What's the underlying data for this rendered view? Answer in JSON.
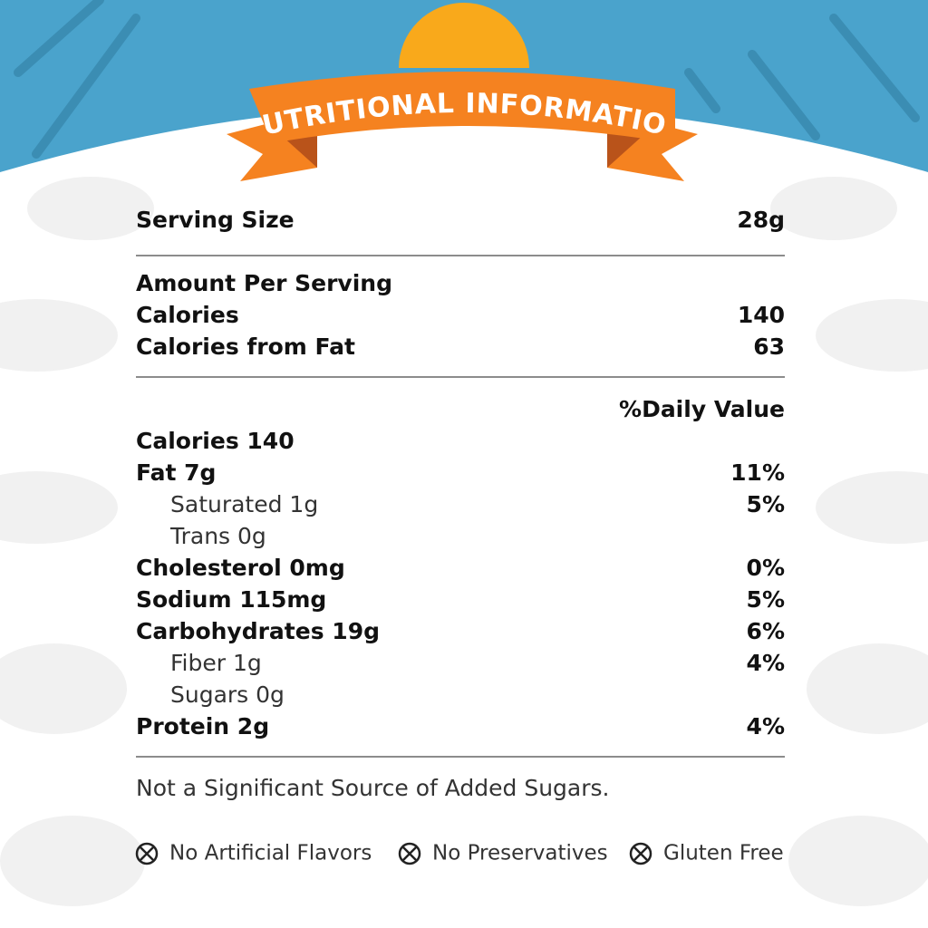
{
  "header": {
    "title": "NUTRITIONAL INFORMATION"
  },
  "serving": {
    "label": "Serving Size",
    "value": "28g"
  },
  "amount": {
    "heading": "Amount Per Serving",
    "rows": [
      {
        "label": "Calories",
        "value": "140"
      },
      {
        "label": "Calories from Fat",
        "value": "63"
      }
    ]
  },
  "daily_value_heading": "%Daily Value",
  "nutrients": [
    {
      "label": "Calories 140"
    },
    {
      "label": "Fat 7g",
      "dv": "11%",
      "sub": [
        {
          "label": "Saturated 1g",
          "dv": "5%"
        },
        {
          "label": "Trans 0g"
        }
      ]
    },
    {
      "label": "Cholesterol 0mg",
      "dv": "0%"
    },
    {
      "label": "Sodium 115mg",
      "dv": "5%"
    },
    {
      "label": "Carbohydrates 19g",
      "dv": "6%",
      "sub": [
        {
          "label": "Fiber 1g",
          "dv": "4%"
        },
        {
          "label": "Sugars 0g"
        }
      ]
    },
    {
      "label": "Protein 2g",
      "dv": "4%"
    }
  ],
  "footnote": "Not a Significant Source of  Added Sugars.",
  "badges": [
    "No Artificial Flavors",
    "No Preservatives",
    "Gluten Free"
  ]
}
